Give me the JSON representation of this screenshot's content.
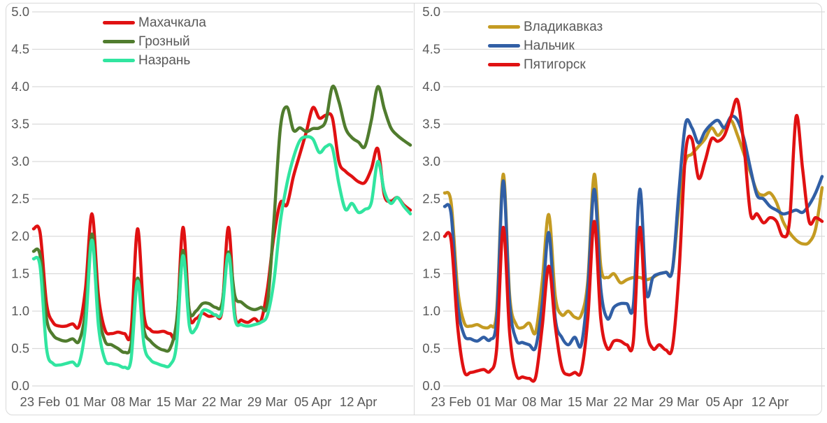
{
  "window": {
    "background": "#ffffff",
    "frame_color": "#d9d9d9",
    "grid_color": "#d9d9d9",
    "axis_text_color": "#595959"
  },
  "chart_data": [
    {
      "type": "line",
      "title": "",
      "panel": "left",
      "grid": true,
      "smooth": true,
      "legend_position": "top-left-inside",
      "ylim": [
        0,
        5
      ],
      "y_tick_labels": [
        "0.0",
        "0.5",
        "1.0",
        "1.5",
        "2.0",
        "2.5",
        "3.0",
        "3.5",
        "4.0",
        "4.5",
        "5.0"
      ],
      "x_labels": [
        "23 Feb",
        "01 Mar",
        "08 Mar",
        "15 Mar",
        "22 Mar",
        "29 Mar",
        "05 Apr",
        "12 Apr"
      ],
      "x_label_indices": [
        1,
        8,
        15,
        22,
        29,
        36,
        43,
        50
      ],
      "n_points": 59,
      "series": [
        {
          "name": "Махачкала",
          "color": "#e01112",
          "values": [
            2.1,
            2.05,
            1.1,
            0.85,
            0.8,
            0.8,
            0.83,
            0.8,
            1.3,
            2.3,
            1.2,
            0.75,
            0.7,
            0.72,
            0.7,
            0.73,
            2.1,
            0.95,
            0.75,
            0.72,
            0.73,
            0.7,
            0.75,
            2.12,
            0.95,
            0.9,
            0.97,
            0.93,
            0.95,
            1.0,
            2.12,
            0.95,
            0.88,
            0.85,
            0.9,
            0.87,
            1.3,
            2.0,
            2.45,
            2.42,
            2.8,
            3.1,
            3.4,
            3.72,
            3.58,
            3.62,
            3.58,
            3.0,
            2.87,
            2.8,
            2.73,
            2.72,
            2.9,
            3.17,
            2.55,
            2.47,
            2.52,
            2.42,
            2.35
          ]
        },
        {
          "name": "Грозный",
          "color": "#507c2e",
          "values": [
            1.8,
            1.75,
            0.9,
            0.68,
            0.62,
            0.6,
            0.63,
            0.6,
            1.0,
            2.03,
            1.0,
            0.6,
            0.55,
            0.5,
            0.45,
            0.55,
            1.44,
            0.75,
            0.6,
            0.52,
            0.48,
            0.5,
            0.85,
            1.81,
            1.0,
            1.0,
            1.1,
            1.1,
            1.05,
            1.1,
            1.79,
            1.2,
            1.12,
            1.05,
            1.02,
            1.05,
            1.1,
            2.2,
            3.45,
            3.73,
            3.42,
            3.45,
            3.4,
            3.44,
            3.45,
            3.55,
            4.0,
            3.8,
            3.45,
            3.32,
            3.26,
            3.2,
            3.55,
            4.0,
            3.7,
            3.45,
            3.35,
            3.28,
            3.22
          ]
        },
        {
          "name": "Назрань",
          "color": "#31e5a0",
          "values": [
            1.7,
            1.6,
            0.5,
            0.3,
            0.28,
            0.3,
            0.32,
            0.3,
            0.8,
            1.95,
            0.8,
            0.35,
            0.3,
            0.28,
            0.25,
            0.35,
            1.4,
            0.55,
            0.35,
            0.3,
            0.27,
            0.28,
            0.55,
            1.74,
            0.8,
            0.77,
            1.0,
            1.0,
            0.95,
            1.0,
            1.76,
            0.9,
            0.82,
            0.8,
            0.82,
            0.85,
            0.95,
            1.4,
            2.2,
            2.7,
            3.05,
            3.28,
            3.33,
            3.3,
            3.12,
            3.2,
            3.18,
            2.7,
            2.36,
            2.44,
            2.32,
            2.36,
            2.45,
            3.0,
            2.6,
            2.44,
            2.52,
            2.4,
            2.3
          ]
        }
      ]
    },
    {
      "type": "line",
      "title": "",
      "panel": "right",
      "grid": true,
      "smooth": true,
      "legend_position": "top-left-inside",
      "ylim": [
        0,
        5
      ],
      "y_tick_labels": [
        "0.0",
        "0.5",
        "1.0",
        "1.5",
        "2.0",
        "2.5",
        "3.0",
        "3.5",
        "4.0",
        "4.5",
        "5.0"
      ],
      "x_labels": [
        "23 Feb",
        "01 Mar",
        "08 Mar",
        "15 Mar",
        "22 Mar",
        "29 Mar",
        "05 Apr",
        "12 Apr"
      ],
      "x_label_indices": [
        1,
        8,
        15,
        22,
        29,
        36,
        43,
        50
      ],
      "n_points": 59,
      "series": [
        {
          "name": "Владикавказ",
          "color": "#c49b22",
          "values": [
            2.58,
            2.45,
            1.3,
            0.85,
            0.8,
            0.82,
            0.78,
            0.8,
            1.0,
            2.83,
            1.2,
            0.82,
            0.78,
            0.84,
            0.72,
            1.4,
            2.29,
            1.2,
            0.95,
            1.0,
            0.92,
            0.95,
            1.4,
            2.83,
            1.6,
            1.45,
            1.5,
            1.38,
            1.42,
            1.45,
            1.45,
            1.42,
            1.45,
            1.5,
            1.52,
            1.55,
            2.4,
            3.0,
            3.1,
            3.2,
            3.3,
            3.45,
            3.35,
            3.45,
            3.55,
            3.35,
            3.1,
            2.85,
            2.6,
            2.55,
            2.58,
            2.45,
            2.2,
            2.05,
            1.95,
            1.9,
            1.92,
            2.1,
            2.65
          ]
        },
        {
          "name": "Нальчик",
          "color": "#315fa5",
          "values": [
            2.4,
            2.3,
            1.1,
            0.68,
            0.63,
            0.6,
            0.65,
            0.62,
            0.9,
            2.74,
            1.1,
            0.62,
            0.58,
            0.55,
            0.52,
            1.1,
            2.05,
            0.9,
            0.65,
            0.55,
            0.65,
            0.55,
            1.3,
            2.63,
            1.3,
            0.9,
            1.05,
            1.1,
            1.1,
            1.08,
            2.63,
            1.25,
            1.45,
            1.5,
            1.52,
            1.55,
            2.6,
            3.5,
            3.45,
            3.25,
            3.4,
            3.5,
            3.55,
            3.45,
            3.6,
            3.55,
            3.3,
            2.9,
            2.55,
            2.5,
            2.4,
            2.35,
            2.3,
            2.32,
            2.35,
            2.32,
            2.42,
            2.58,
            2.8
          ]
        },
        {
          "name": "Пятигорск",
          "color": "#e01112",
          "values": [
            2.0,
            1.95,
            0.8,
            0.2,
            0.18,
            0.2,
            0.22,
            0.2,
            0.5,
            2.12,
            0.7,
            0.15,
            0.12,
            0.1,
            0.12,
            0.8,
            1.6,
            0.8,
            0.25,
            0.15,
            0.18,
            0.2,
            0.9,
            2.2,
            0.9,
            0.5,
            0.6,
            0.6,
            0.55,
            0.6,
            2.12,
            0.8,
            0.5,
            0.55,
            0.48,
            0.52,
            1.5,
            3.1,
            3.3,
            2.78,
            3.0,
            3.3,
            3.27,
            3.35,
            3.6,
            3.82,
            3.2,
            2.3,
            2.3,
            2.18,
            2.25,
            2.2,
            2.0,
            2.2,
            3.6,
            2.9,
            2.2,
            2.25,
            2.2
          ]
        }
      ]
    }
  ]
}
